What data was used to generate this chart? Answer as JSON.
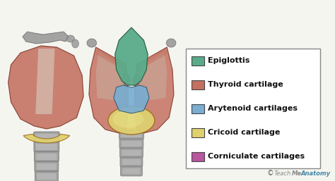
{
  "background_color": "#f5f5f0",
  "legend_items": [
    {
      "label": "Epiglottis",
      "color": "#5aab8a"
    },
    {
      "label": "Thyroid cartilage",
      "color": "#c47060"
    },
    {
      "label": "Arytenoid cartilages",
      "color": "#7aadd0"
    },
    {
      "label": "Cricoid cartilage",
      "color": "#dfd070"
    },
    {
      "label": "Corniculate cartilages",
      "color": "#b856a0"
    }
  ],
  "legend_fontsize": 8.0,
  "watermark": "© TeachMeAnatomy",
  "figsize": [
    4.74,
    2.57
  ],
  "dpi": 100,
  "gray": "#9a9a9a",
  "gray_dark": "#707070",
  "gray_light": "#c8c8c8",
  "thyroid_color": "#c47060",
  "thyroid_edge": "#7a3020",
  "cricoid_color": "#dfd070",
  "cricoid_edge": "#a07020",
  "epiglottis_color": "#5aab8a",
  "epiglottis_edge": "#2a6040",
  "arytenoid_color": "#7aadd0",
  "arytenoid_edge": "#2a5070",
  "corniculate_color": "#b856a0",
  "corniculate_edge": "#6a2060"
}
